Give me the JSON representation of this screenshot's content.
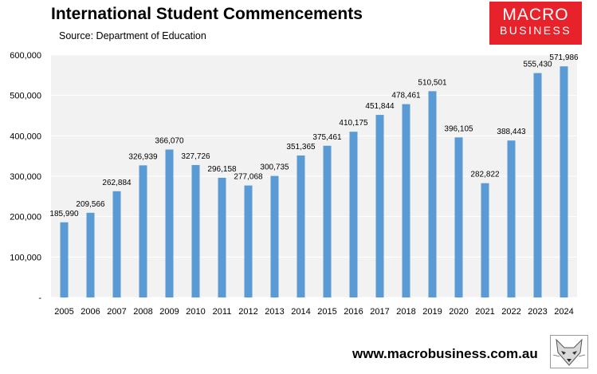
{
  "header": {
    "title": "International Student Commencements",
    "subtitle": "Source: Department of Education"
  },
  "logo": {
    "line1": "MACRO",
    "line2": "BUSINESS",
    "color": "#e7222b"
  },
  "footer": {
    "url": "www.macrobusiness.com.au",
    "icon": "fox-mascot-icon"
  },
  "colors": {
    "bar": "#5b9bd5",
    "plot_bg": "#f2f2f2",
    "grid": "#ffffff"
  },
  "chart_data": {
    "type": "bar",
    "title": "International Student Commencements",
    "subtitle": "Source: Department of Education",
    "xlabel": "",
    "ylabel": "",
    "categories": [
      "2005",
      "2006",
      "2007",
      "2008",
      "2009",
      "2010",
      "2011",
      "2012",
      "2013",
      "2014",
      "2015",
      "2016",
      "2017",
      "2018",
      "2019",
      "2020",
      "2021",
      "2022",
      "2023",
      "2024"
    ],
    "values": [
      185990,
      209566,
      262884,
      326939,
      366070,
      327726,
      296158,
      277068,
      300735,
      351365,
      375461,
      410175,
      451844,
      478461,
      510501,
      396105,
      282822,
      388443,
      555430,
      571986
    ],
    "data_labels": [
      "185,990",
      "209,566",
      "262,884",
      "326,939",
      "366,070",
      "327,726",
      "296,158",
      "277,068",
      "300,735",
      "351,365",
      "375,461",
      "410,175",
      "451,844",
      "478,461",
      "510,501",
      "396,105",
      "282,822",
      "388,443",
      "555,430",
      "571,986"
    ],
    "ylim": [
      0,
      600000
    ],
    "y_ticks": [
      0,
      100000,
      200000,
      300000,
      400000,
      500000,
      600000
    ],
    "y_tick_labels": [
      "-",
      "100,000",
      "200,000",
      "300,000",
      "400,000",
      "500,000",
      "600,000"
    ],
    "grid": true,
    "legend": "none"
  }
}
